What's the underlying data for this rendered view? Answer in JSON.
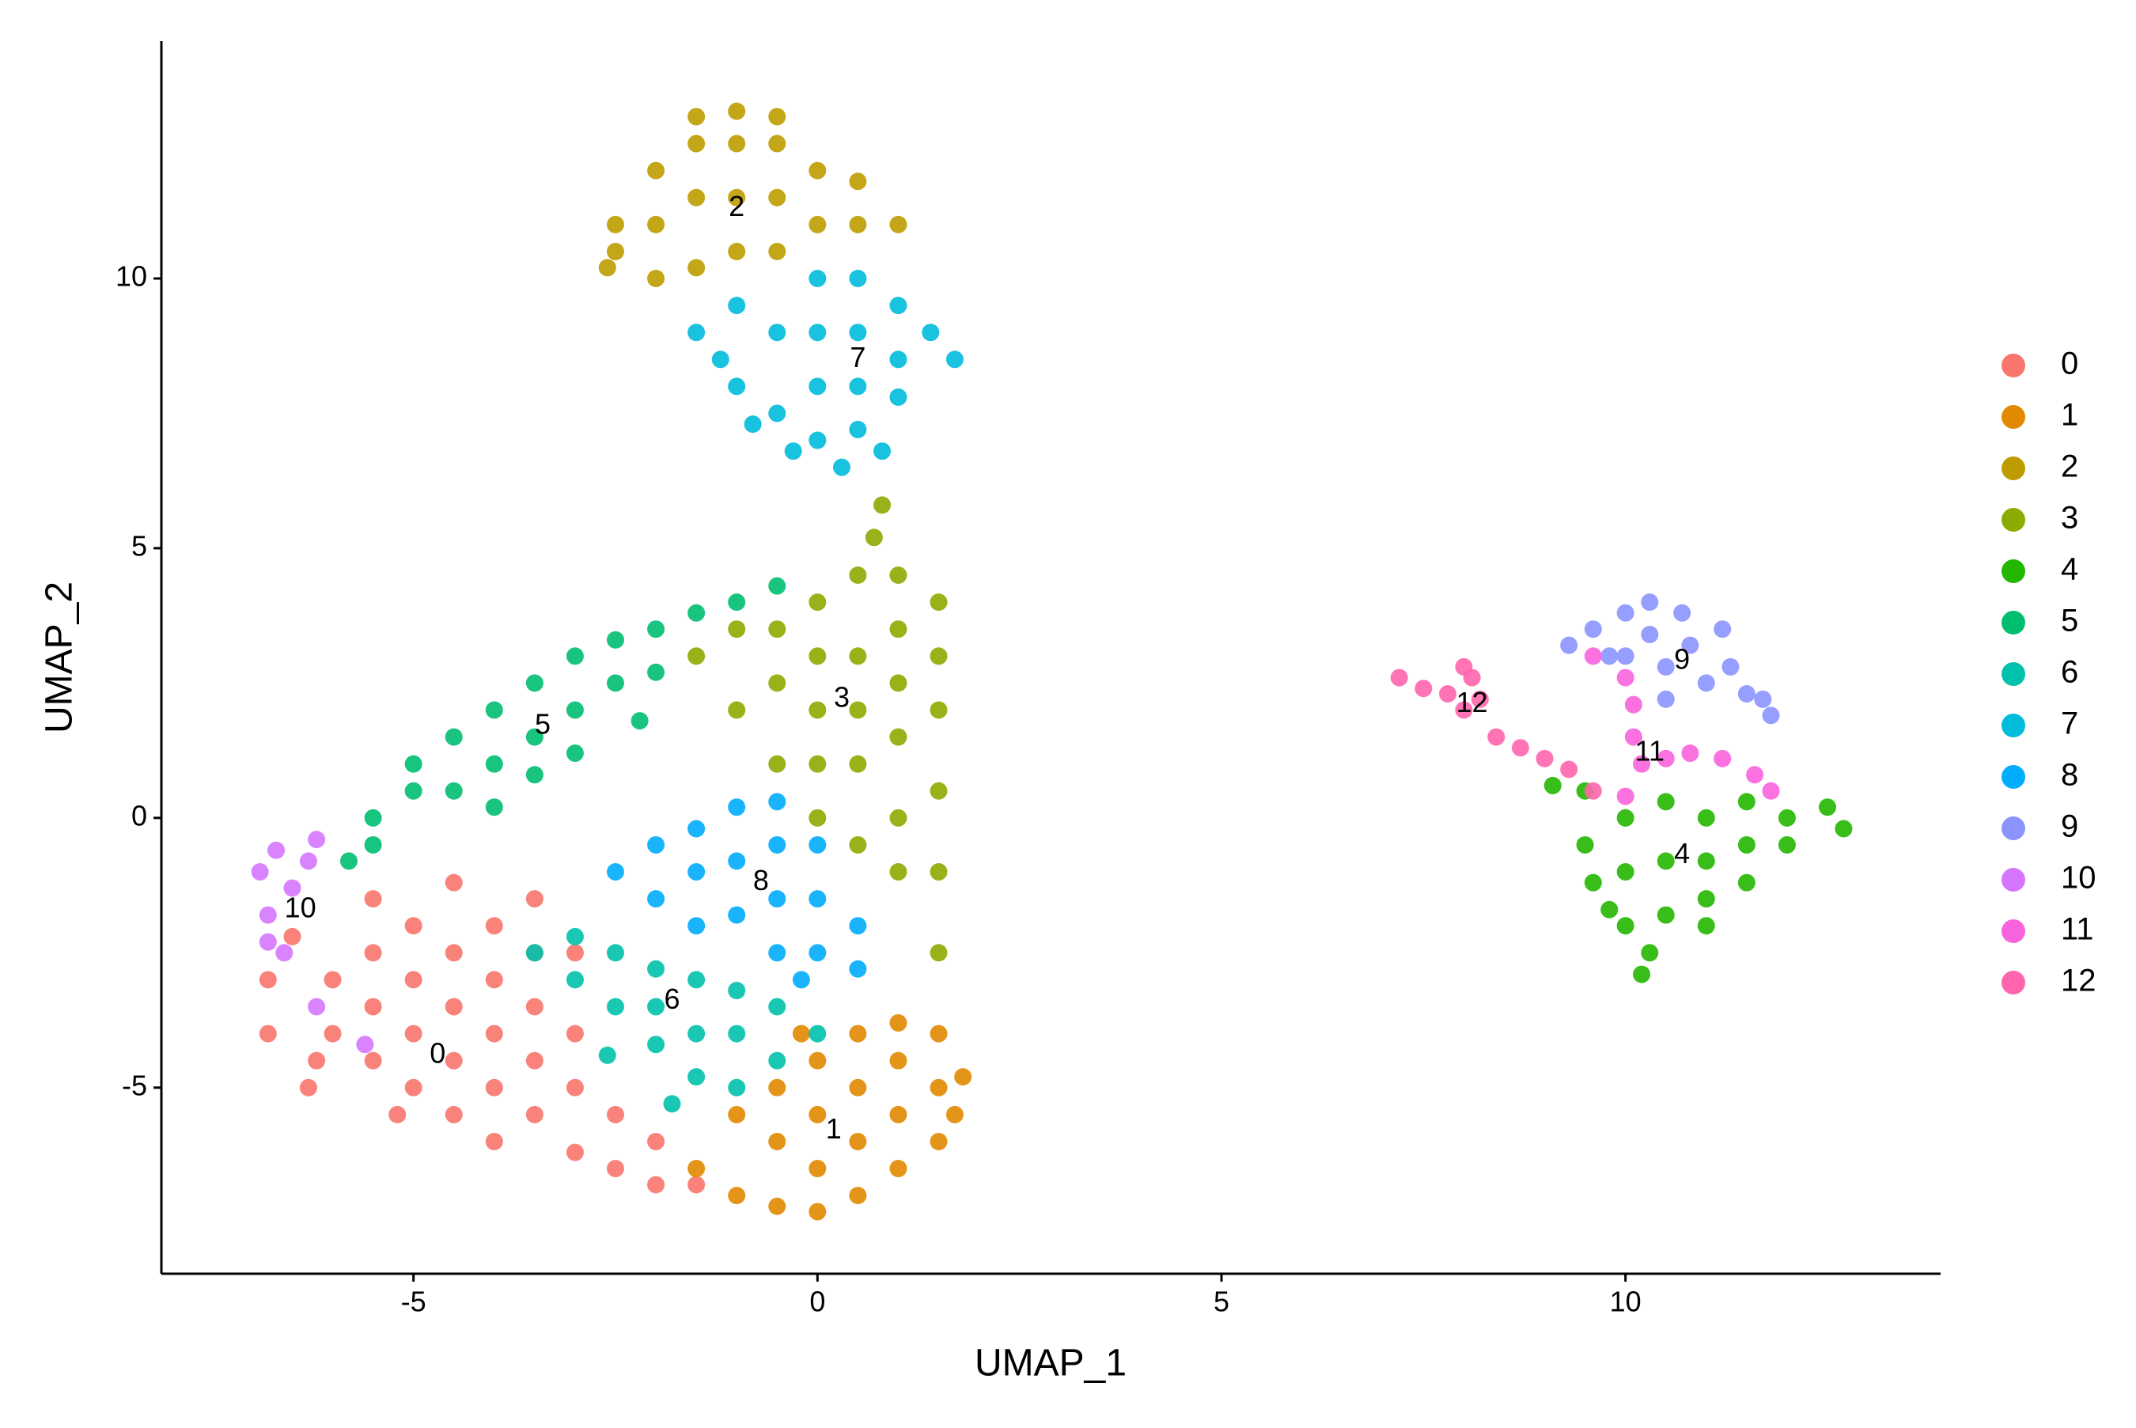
{
  "chart_data": {
    "type": "scatter",
    "xlabel": "UMAP_1",
    "ylabel": "UMAP_2",
    "xlim": [
      -8.12,
      13.9
    ],
    "ylim": [
      -8.45,
      14.4
    ],
    "xticks": [
      -5,
      0,
      5,
      10
    ],
    "yticks": [
      -5,
      0,
      5,
      10
    ],
    "grid": false,
    "legend": "right",
    "series": [
      {
        "name": "0",
        "color": "#F8766D",
        "x": [
          -6.8,
          -6.8,
          -6.5,
          -6.3,
          -6,
          -6,
          -5.5,
          -5.5,
          -5.5,
          -5.5,
          -5.2,
          -5,
          -5,
          -5,
          -5,
          -4.5,
          -4.5,
          -4.5,
          -4.5,
          -4.5,
          -4,
          -4,
          -4,
          -4,
          -4,
          -3.5,
          -3.5,
          -3.5,
          -3.5,
          -3.5,
          -3,
          -3,
          -3,
          -3,
          -2.5,
          -2.5,
          -2,
          -2,
          -1.5,
          -6.2
        ],
        "y": [
          -3,
          -4,
          -2.2,
          -5,
          -3,
          -4,
          -1.5,
          -2.5,
          -3.5,
          -4.5,
          -5.5,
          -2,
          -3,
          -4,
          -5,
          -1.2,
          -2.5,
          -3.5,
          -4.5,
          -5.5,
          -6,
          -2,
          -3,
          -4,
          -5,
          -1.5,
          -2.5,
          -3.5,
          -4.5,
          -5.5,
          -6.2,
          -2.5,
          -4,
          -5,
          -5.5,
          -6.5,
          -6,
          -6.8,
          -6.8,
          -4.5
        ]
      },
      {
        "name": "1",
        "color": "#E18A00",
        "x": [
          -1.5,
          -1,
          -1,
          -0.5,
          -0.5,
          -0.5,
          0,
          0,
          0,
          0,
          0.5,
          0.5,
          0.5,
          0.5,
          1,
          1,
          1,
          1,
          1.5,
          1.5,
          1.5,
          1.8,
          1.7,
          -0.2
        ],
        "y": [
          -6.5,
          -5.5,
          -7,
          -6,
          -5,
          -7.2,
          -4.5,
          -5.5,
          -6.5,
          -7.3,
          -4,
          -5,
          -6,
          -7,
          -3.8,
          -4.5,
          -5.5,
          -6.5,
          -4,
          -5,
          -6,
          -4.8,
          -5.5,
          -4
        ]
      },
      {
        "name": "2",
        "color": "#BE9C00",
        "x": [
          -2.5,
          -2.5,
          -2,
          -2,
          -2,
          -1.5,
          -1.5,
          -1.5,
          -1,
          -1,
          -1,
          -1,
          -0.5,
          -0.5,
          -0.5,
          -0.5,
          0,
          0,
          0.5,
          0.5,
          1,
          -1.5,
          -2.6
        ],
        "y": [
          10.5,
          11,
          10,
          11,
          12,
          10.2,
          11.5,
          12.5,
          10.5,
          11.5,
          12.5,
          13.1,
          10.5,
          11.5,
          12.5,
          13,
          11,
          12,
          11,
          11.8,
          11,
          13,
          10.2
        ]
      },
      {
        "name": "3",
        "color": "#8CAB00",
        "x": [
          -1.5,
          -1,
          -1,
          -0.5,
          -0.5,
          -0.5,
          0,
          0,
          0,
          0,
          0,
          0.5,
          0.5,
          0.5,
          0.5,
          0.5,
          1,
          1,
          1,
          1,
          1,
          1,
          1.5,
          1.5,
          1.5,
          1.5,
          1.5,
          1.5,
          0.7,
          0.8
        ],
        "y": [
          3,
          3.5,
          2,
          3.5,
          2.5,
          1,
          4,
          3,
          2,
          1,
          0,
          4.5,
          3,
          2,
          1,
          -0.5,
          4.5,
          3.5,
          2.5,
          1.5,
          0,
          -1,
          4,
          3,
          2,
          0.5,
          -1,
          -2.5,
          5.2,
          5.8
        ]
      },
      {
        "name": "4",
        "color": "#24B700",
        "x": [
          9.1,
          9.5,
          9.5,
          9.6,
          10,
          10,
          10,
          10.3,
          10.2,
          10.5,
          10.5,
          10.5,
          11,
          11,
          11,
          11.5,
          11.5,
          11.5,
          12,
          12,
          12.5,
          12.7,
          9.8,
          11
        ],
        "y": [
          0.6,
          0.5,
          -0.5,
          -1.2,
          0,
          -1,
          -2,
          -2.5,
          -2.9,
          0.3,
          -0.8,
          -1.8,
          0,
          -0.8,
          -1.5,
          0.3,
          -0.5,
          -1.2,
          0,
          -0.5,
          0.2,
          -0.2,
          -1.7,
          -2
        ]
      },
      {
        "name": "5",
        "color": "#00BE70",
        "x": [
          -5.5,
          -5.5,
          -5,
          -5,
          -4.5,
          -4.5,
          -4,
          -4,
          -4,
          -3.5,
          -3.5,
          -3.5,
          -3,
          -3,
          -3,
          -2.5,
          -2.5,
          -2,
          -2,
          -1.5,
          -1,
          -0.5,
          -5.8,
          -2.2
        ],
        "y": [
          0,
          -0.5,
          0.5,
          1,
          0.5,
          1.5,
          1,
          2,
          0.2,
          1.5,
          2.5,
          0.8,
          2,
          3,
          1.2,
          2.5,
          3.3,
          3.5,
          2.7,
          3.8,
          4,
          4.3,
          -0.8,
          1.8
        ]
      },
      {
        "name": "6",
        "color": "#00C1AB",
        "x": [
          -3.5,
          -3,
          -3,
          -2.5,
          -2.5,
          -2,
          -2,
          -2,
          -1.5,
          -1.5,
          -1.5,
          -1,
          -1,
          -1,
          -0.5,
          -0.5,
          0,
          -1.8,
          -2.6
        ],
        "y": [
          -2.5,
          -3,
          -2.2,
          -2.5,
          -3.5,
          -2.8,
          -3.5,
          -4.2,
          -3,
          -4,
          -4.8,
          -3.2,
          -4,
          -5,
          -3.5,
          -4.5,
          -4,
          -5.3,
          -4.4
        ]
      },
      {
        "name": "7",
        "color": "#00BBDA",
        "x": [
          -1.5,
          -1.2,
          -1,
          -1,
          -0.8,
          -0.5,
          -0.5,
          -0.3,
          0,
          0,
          0,
          0,
          0.3,
          0.5,
          0.5,
          0.5,
          0.5,
          1,
          1,
          1,
          1.4,
          1.7,
          0.8
        ],
        "y": [
          9,
          8.5,
          9.5,
          8,
          7.3,
          9,
          7.5,
          6.8,
          10,
          9,
          8,
          7,
          6.5,
          10,
          9,
          8,
          7.2,
          9.5,
          8.5,
          7.8,
          9,
          8.5,
          6.8
        ]
      },
      {
        "name": "8",
        "color": "#00ACFC",
        "x": [
          -2.5,
          -2,
          -2,
          -1.5,
          -1.5,
          -1.5,
          -1,
          -1,
          -1,
          -0.5,
          -0.5,
          -0.5,
          -0.5,
          0,
          0,
          0,
          0.5,
          0.5,
          -0.2
        ],
        "y": [
          -1,
          -0.5,
          -1.5,
          -0.2,
          -1,
          -2,
          0.2,
          -0.8,
          -1.8,
          0.3,
          -0.5,
          -1.5,
          -2.5,
          -0.5,
          -1.5,
          -2.5,
          -2,
          -2.8,
          -3
        ]
      },
      {
        "name": "9",
        "color": "#8B93FF",
        "x": [
          9.3,
          9.6,
          9.8,
          10,
          10,
          10.3,
          10.3,
          10.5,
          10.7,
          10.8,
          11,
          11.2,
          11.3,
          11.5,
          11.7,
          11.8,
          10.5
        ],
        "y": [
          3.2,
          3.5,
          3,
          3.8,
          3,
          4,
          3.4,
          2.8,
          3.8,
          3.2,
          2.5,
          3.5,
          2.8,
          2.3,
          2.2,
          1.9,
          2.2
        ]
      },
      {
        "name": "10",
        "color": "#D575FE",
        "x": [
          -6.9,
          -6.8,
          -6.7,
          -6.6,
          -6.5,
          -6.3,
          -6.8,
          -6.2,
          -5.6,
          -6.2
        ],
        "y": [
          -1,
          -1.8,
          -0.6,
          -2.5,
          -1.3,
          -0.8,
          -2.3,
          -0.4,
          -4.2,
          -3.5
        ]
      },
      {
        "name": "11",
        "color": "#F962DD",
        "x": [
          9.6,
          10,
          10.1,
          10.1,
          10.2,
          10.5,
          10.8,
          11.2,
          11.6,
          11.8,
          10
        ],
        "y": [
          3,
          2.6,
          2.1,
          1.5,
          1,
          1.1,
          1.2,
          1.1,
          0.8,
          0.5,
          0.4
        ]
      },
      {
        "name": "12",
        "color": "#FF65AC",
        "x": [
          7.2,
          7.5,
          7.8,
          8,
          8,
          8.2,
          8.4,
          8.7,
          9,
          9.3,
          9.6,
          8.1
        ],
        "y": [
          2.6,
          2.4,
          2.3,
          2.8,
          2,
          2.2,
          1.5,
          1.3,
          1.1,
          0.9,
          0.5,
          2.6
        ]
      }
    ],
    "annotations": [
      {
        "text": "0",
        "x": -4.7,
        "y": -4.4
      },
      {
        "text": "1",
        "x": 0.2,
        "y": -5.8
      },
      {
        "text": "2",
        "x": -1.0,
        "y": 11.3
      },
      {
        "text": "3",
        "x": 0.3,
        "y": 2.2
      },
      {
        "text": "4",
        "x": 10.7,
        "y": -0.7
      },
      {
        "text": "5",
        "x": -3.4,
        "y": 1.7
      },
      {
        "text": "6",
        "x": -1.8,
        "y": -3.4
      },
      {
        "text": "7",
        "x": 0.5,
        "y": 8.5
      },
      {
        "text": "8",
        "x": -0.7,
        "y": -1.2
      },
      {
        "text": "9",
        "x": 10.7,
        "y": 2.9
      },
      {
        "text": "10",
        "x": -6.4,
        "y": -1.7
      },
      {
        "text": "11",
        "x": 10.3,
        "y": 1.2
      },
      {
        "text": "12",
        "x": 8.1,
        "y": 2.1
      }
    ]
  }
}
